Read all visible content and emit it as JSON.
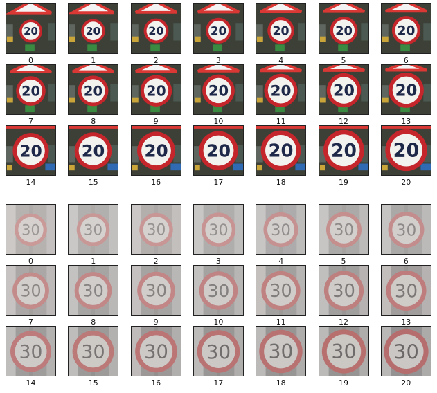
{
  "title": "",
  "sets": [
    {
      "name": "speed-limit-20",
      "sign_text": "20",
      "labels": [
        "0",
        "1",
        "2",
        "3",
        "4",
        "5",
        "6",
        "7",
        "8",
        "9",
        "10",
        "11",
        "12",
        "13",
        "14",
        "15",
        "16",
        "17",
        "18",
        "19",
        "20"
      ],
      "colors": {
        "background": "#3d4036",
        "ring": "#c4262b",
        "plate": "#f2f2ef",
        "text": "#1e2848",
        "triangle": "#d93835",
        "accent_green": "#3a8a42",
        "accent_yellow": "#caa53a",
        "accent_blue": "#2f6ab3"
      }
    },
    {
      "name": "speed-limit-30",
      "sign_text": "30",
      "labels": [
        "0",
        "1",
        "2",
        "3",
        "4",
        "5",
        "6",
        "7",
        "8",
        "9",
        "10",
        "11",
        "12",
        "13",
        "14",
        "15",
        "16",
        "17",
        "18",
        "19",
        "20"
      ],
      "colors": {
        "background": "#8c8a89",
        "ring": "#b26060",
        "plate": "#c8c4c1",
        "text": "#5e5a5a",
        "accent_light": "#d9d7d6"
      }
    }
  ]
}
